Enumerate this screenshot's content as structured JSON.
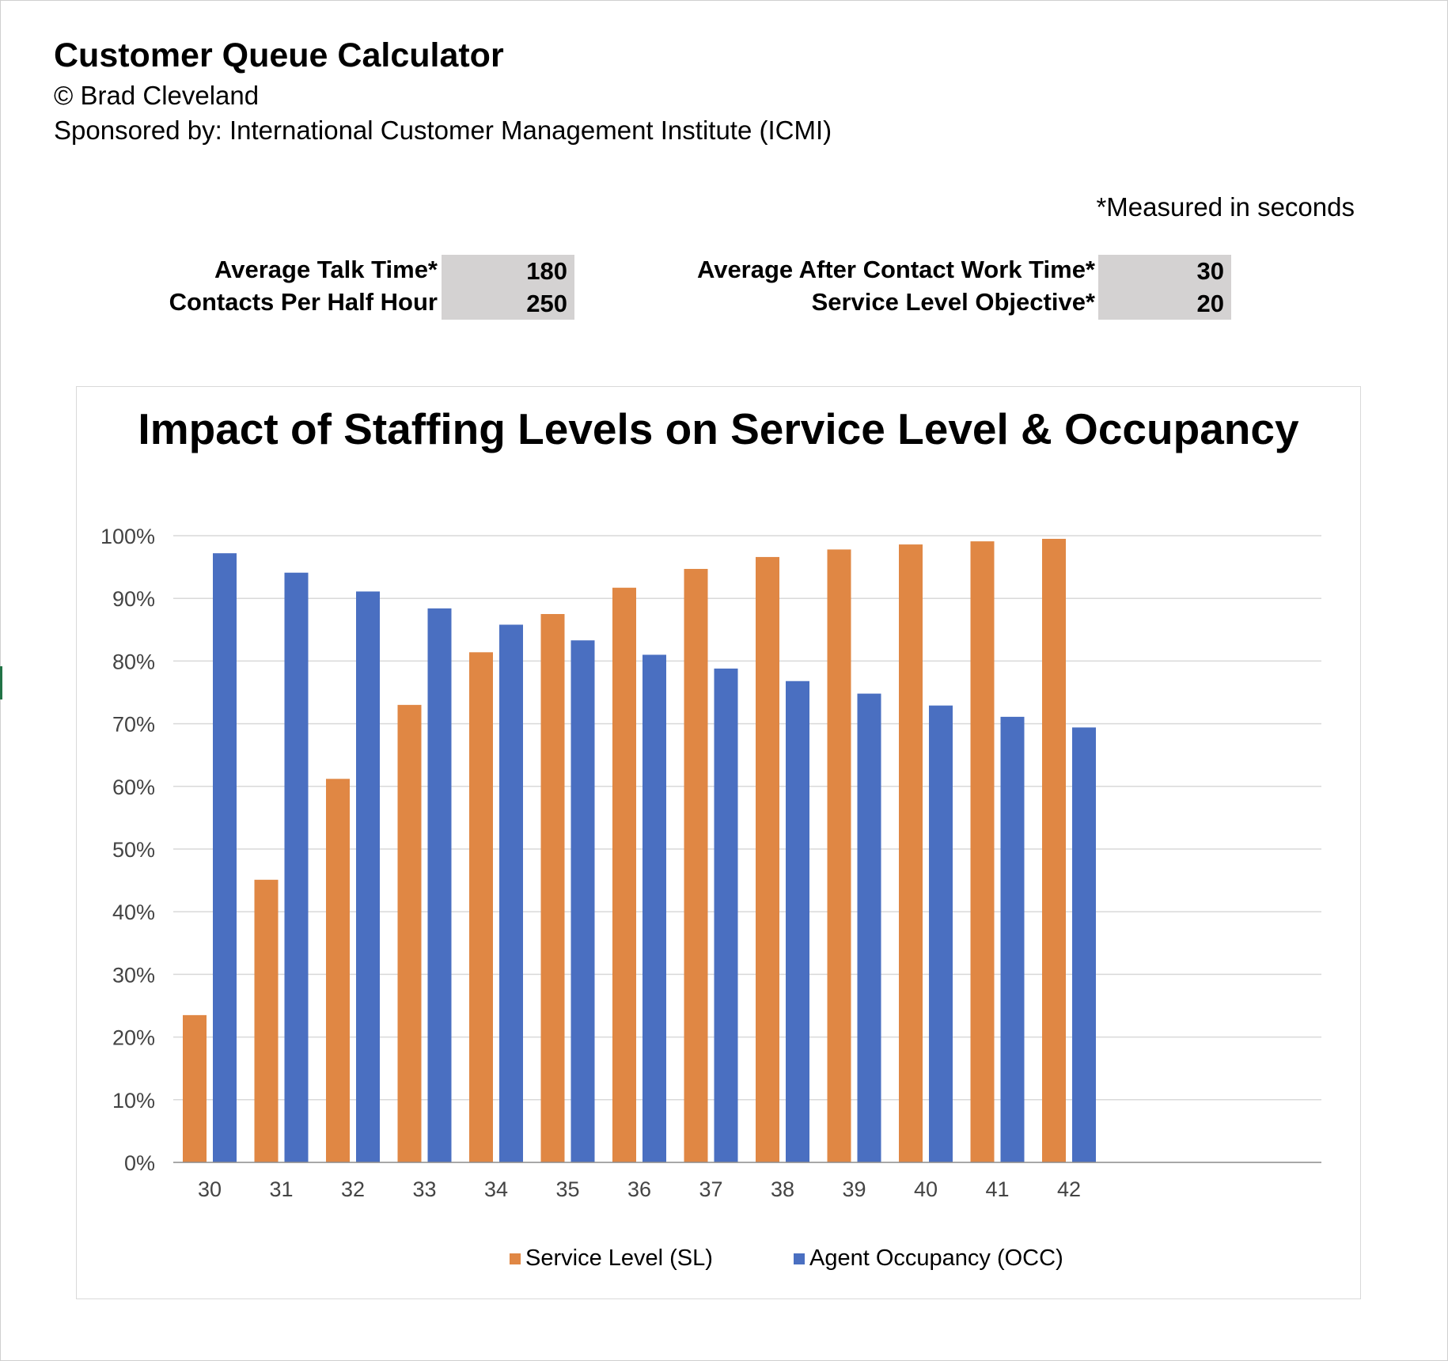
{
  "header": {
    "title": "Customer Queue Calculator",
    "copyright": "© Brad Cleveland",
    "sponsor": "Sponsored by: International Customer Management Institute (ICMI)",
    "note": "*Measured in seconds"
  },
  "inputs": {
    "talk_time": {
      "label": "Average Talk Time*",
      "value": "180"
    },
    "contacts": {
      "label": "Contacts Per Half Hour",
      "value": "250"
    },
    "acw_time": {
      "label": "Average After Contact Work Time*",
      "value": "30"
    },
    "slo": {
      "label": "Service Level Objective*",
      "value": "20"
    }
  },
  "chart_data": {
    "type": "bar",
    "title": "Impact of Staffing Levels on Service Level & Occupancy",
    "categories": [
      "30",
      "31",
      "32",
      "33",
      "34",
      "35",
      "36",
      "37",
      "38",
      "39",
      "40",
      "41",
      "42"
    ],
    "series": [
      {
        "name": "Service Level (SL)",
        "color": "#e08744",
        "values": [
          23.5,
          45.1,
          61.2,
          73.0,
          81.4,
          87.5,
          91.7,
          94.7,
          96.6,
          97.8,
          98.6,
          99.1,
          99.5
        ]
      },
      {
        "name": "Agent Occupancy (OCC)",
        "color": "#4a6fc1",
        "values": [
          97.2,
          94.1,
          91.1,
          88.4,
          85.8,
          83.3,
          81.0,
          78.8,
          76.8,
          74.8,
          72.9,
          71.1,
          69.4
        ]
      }
    ],
    "yticks": [
      "0%",
      "10%",
      "20%",
      "30%",
      "40%",
      "50%",
      "60%",
      "70%",
      "80%",
      "90%",
      "100%"
    ],
    "ylim": [
      0,
      100
    ],
    "grid": true,
    "legend_position": "bottom"
  }
}
